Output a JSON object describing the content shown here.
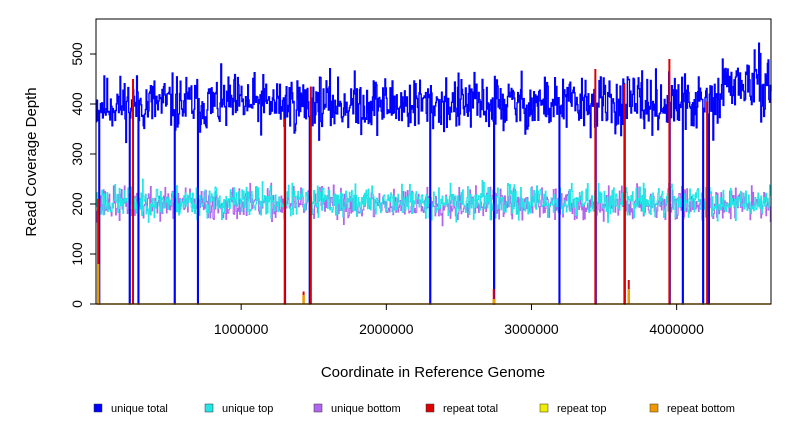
{
  "chart_data": {
    "type": "line",
    "title": "",
    "xlabel": "Coordinate in Reference Genome",
    "ylabel": "Read Coverage Depth",
    "xlim": [
      0,
      4650000
    ],
    "ylim": [
      0,
      570
    ],
    "x_ticks": [
      1000000,
      2000000,
      3000000,
      4000000
    ],
    "x_tick_labels": [
      "1000000",
      "2000000",
      "3000000",
      "4000000"
    ],
    "y_ticks": [
      0,
      100,
      200,
      300,
      400,
      500
    ],
    "y_tick_labels": [
      "0",
      "100",
      "200",
      "300",
      "400",
      "500"
    ],
    "grid": false,
    "legend_position": "bottom",
    "sample_interval": 5000,
    "series": [
      {
        "name": "unique total",
        "color": "#0000ff",
        "base": 400,
        "noise": 35,
        "seed": 11
      },
      {
        "name": "unique top",
        "color": "#22e5e5",
        "base": 205,
        "noise": 20,
        "seed": 23
      },
      {
        "name": "unique bottom",
        "color": "#b266ee",
        "base": 200,
        "noise": 20,
        "seed": 37
      },
      {
        "name": "repeat total",
        "color": "#dd0000",
        "base": 0,
        "noise": 0,
        "seed": 0
      },
      {
        "name": "repeat top",
        "color": "#eeee00",
        "base": 0,
        "noise": 0,
        "seed": 0
      },
      {
        "name": "repeat bottom",
        "color": "#ee9900",
        "base": 0,
        "noise": 0,
        "seed": 0
      }
    ],
    "dropouts": [
      20000,
      230000,
      290000,
      540000,
      700000,
      1300000,
      1470000,
      2300000,
      2740000,
      3190000,
      3440000,
      3640000,
      3950000,
      4040000,
      4180000,
      4220000
    ],
    "repeat_spikes": [
      {
        "x": 15000,
        "total": 210,
        "bottom": 80
      },
      {
        "x": 255000,
        "total": 450,
        "bottom": 0
      },
      {
        "x": 1300000,
        "total": 370,
        "bottom": 0
      },
      {
        "x": 1430000,
        "total": 25,
        "bottom": 18
      },
      {
        "x": 1480000,
        "total": 435,
        "bottom": 0
      },
      {
        "x": 2740000,
        "total": 30,
        "bottom": 10
      },
      {
        "x": 3440000,
        "total": 470,
        "bottom": 0
      },
      {
        "x": 3640000,
        "total": 440,
        "bottom": 0
      },
      {
        "x": 3670000,
        "total": 48,
        "bottom": 30
      },
      {
        "x": 3950000,
        "total": 490,
        "bottom": 0
      },
      {
        "x": 4210000,
        "total": 405,
        "bottom": 0
      }
    ]
  }
}
